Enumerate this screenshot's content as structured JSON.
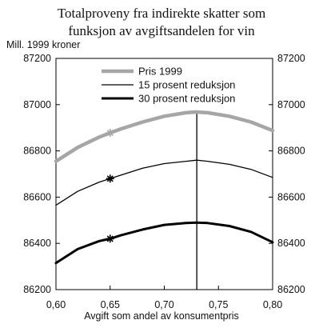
{
  "chart_data": {
    "type": "line",
    "title_lines": [
      "Totalproveny fra indirekte skatter som",
      "funksjon av avgiftsandelen for vin"
    ],
    "ylabel": "Mill. 1999 kroner",
    "xlabel": "Avgift som andel av konsumentpris",
    "xlim": [
      0.6,
      0.8
    ],
    "ylim": [
      86200,
      87200
    ],
    "x_ticks": [
      0.6,
      0.65,
      0.7,
      0.75,
      0.8
    ],
    "x_tick_labels": [
      "0,60",
      "0,65",
      "0,70",
      "0,75",
      "0,80"
    ],
    "y_ticks": [
      86200,
      86400,
      86600,
      86800,
      87000,
      87200
    ],
    "y_tick_labels": [
      "86200",
      "86400",
      "86600",
      "86800",
      "87000",
      "87200"
    ],
    "legend_position": "top-center",
    "vertical_line_x": 0.73,
    "x": [
      0.6,
      0.62,
      0.64,
      0.65,
      0.66,
      0.68,
      0.7,
      0.72,
      0.73,
      0.74,
      0.76,
      0.78,
      0.8
    ],
    "series": [
      {
        "name": "Pris 1999",
        "color": "#a6a6a6",
        "stroke_width": 4.5,
        "values": [
          86755,
          86815,
          86860,
          86878,
          86895,
          86925,
          86950,
          86965,
          86968,
          86965,
          86950,
          86925,
          86888
        ],
        "marker": {
          "x": 0.65,
          "y": 86878
        }
      },
      {
        "name": "15 prosent reduksjon",
        "color": "#000000",
        "stroke_width": 1.3,
        "values": [
          86565,
          86625,
          86665,
          86680,
          86695,
          86725,
          86745,
          86755,
          86760,
          86755,
          86742,
          86720,
          86685
        ],
        "marker": {
          "x": 0.65,
          "y": 86680
        }
      },
      {
        "name": "30 prosent reduksjon",
        "color": "#000000",
        "stroke_width": 3,
        "values": [
          86315,
          86375,
          86410,
          86420,
          86435,
          86460,
          86480,
          86488,
          86490,
          86488,
          86475,
          86450,
          86405
        ],
        "marker": {
          "x": 0.65,
          "y": 86420
        }
      }
    ]
  }
}
